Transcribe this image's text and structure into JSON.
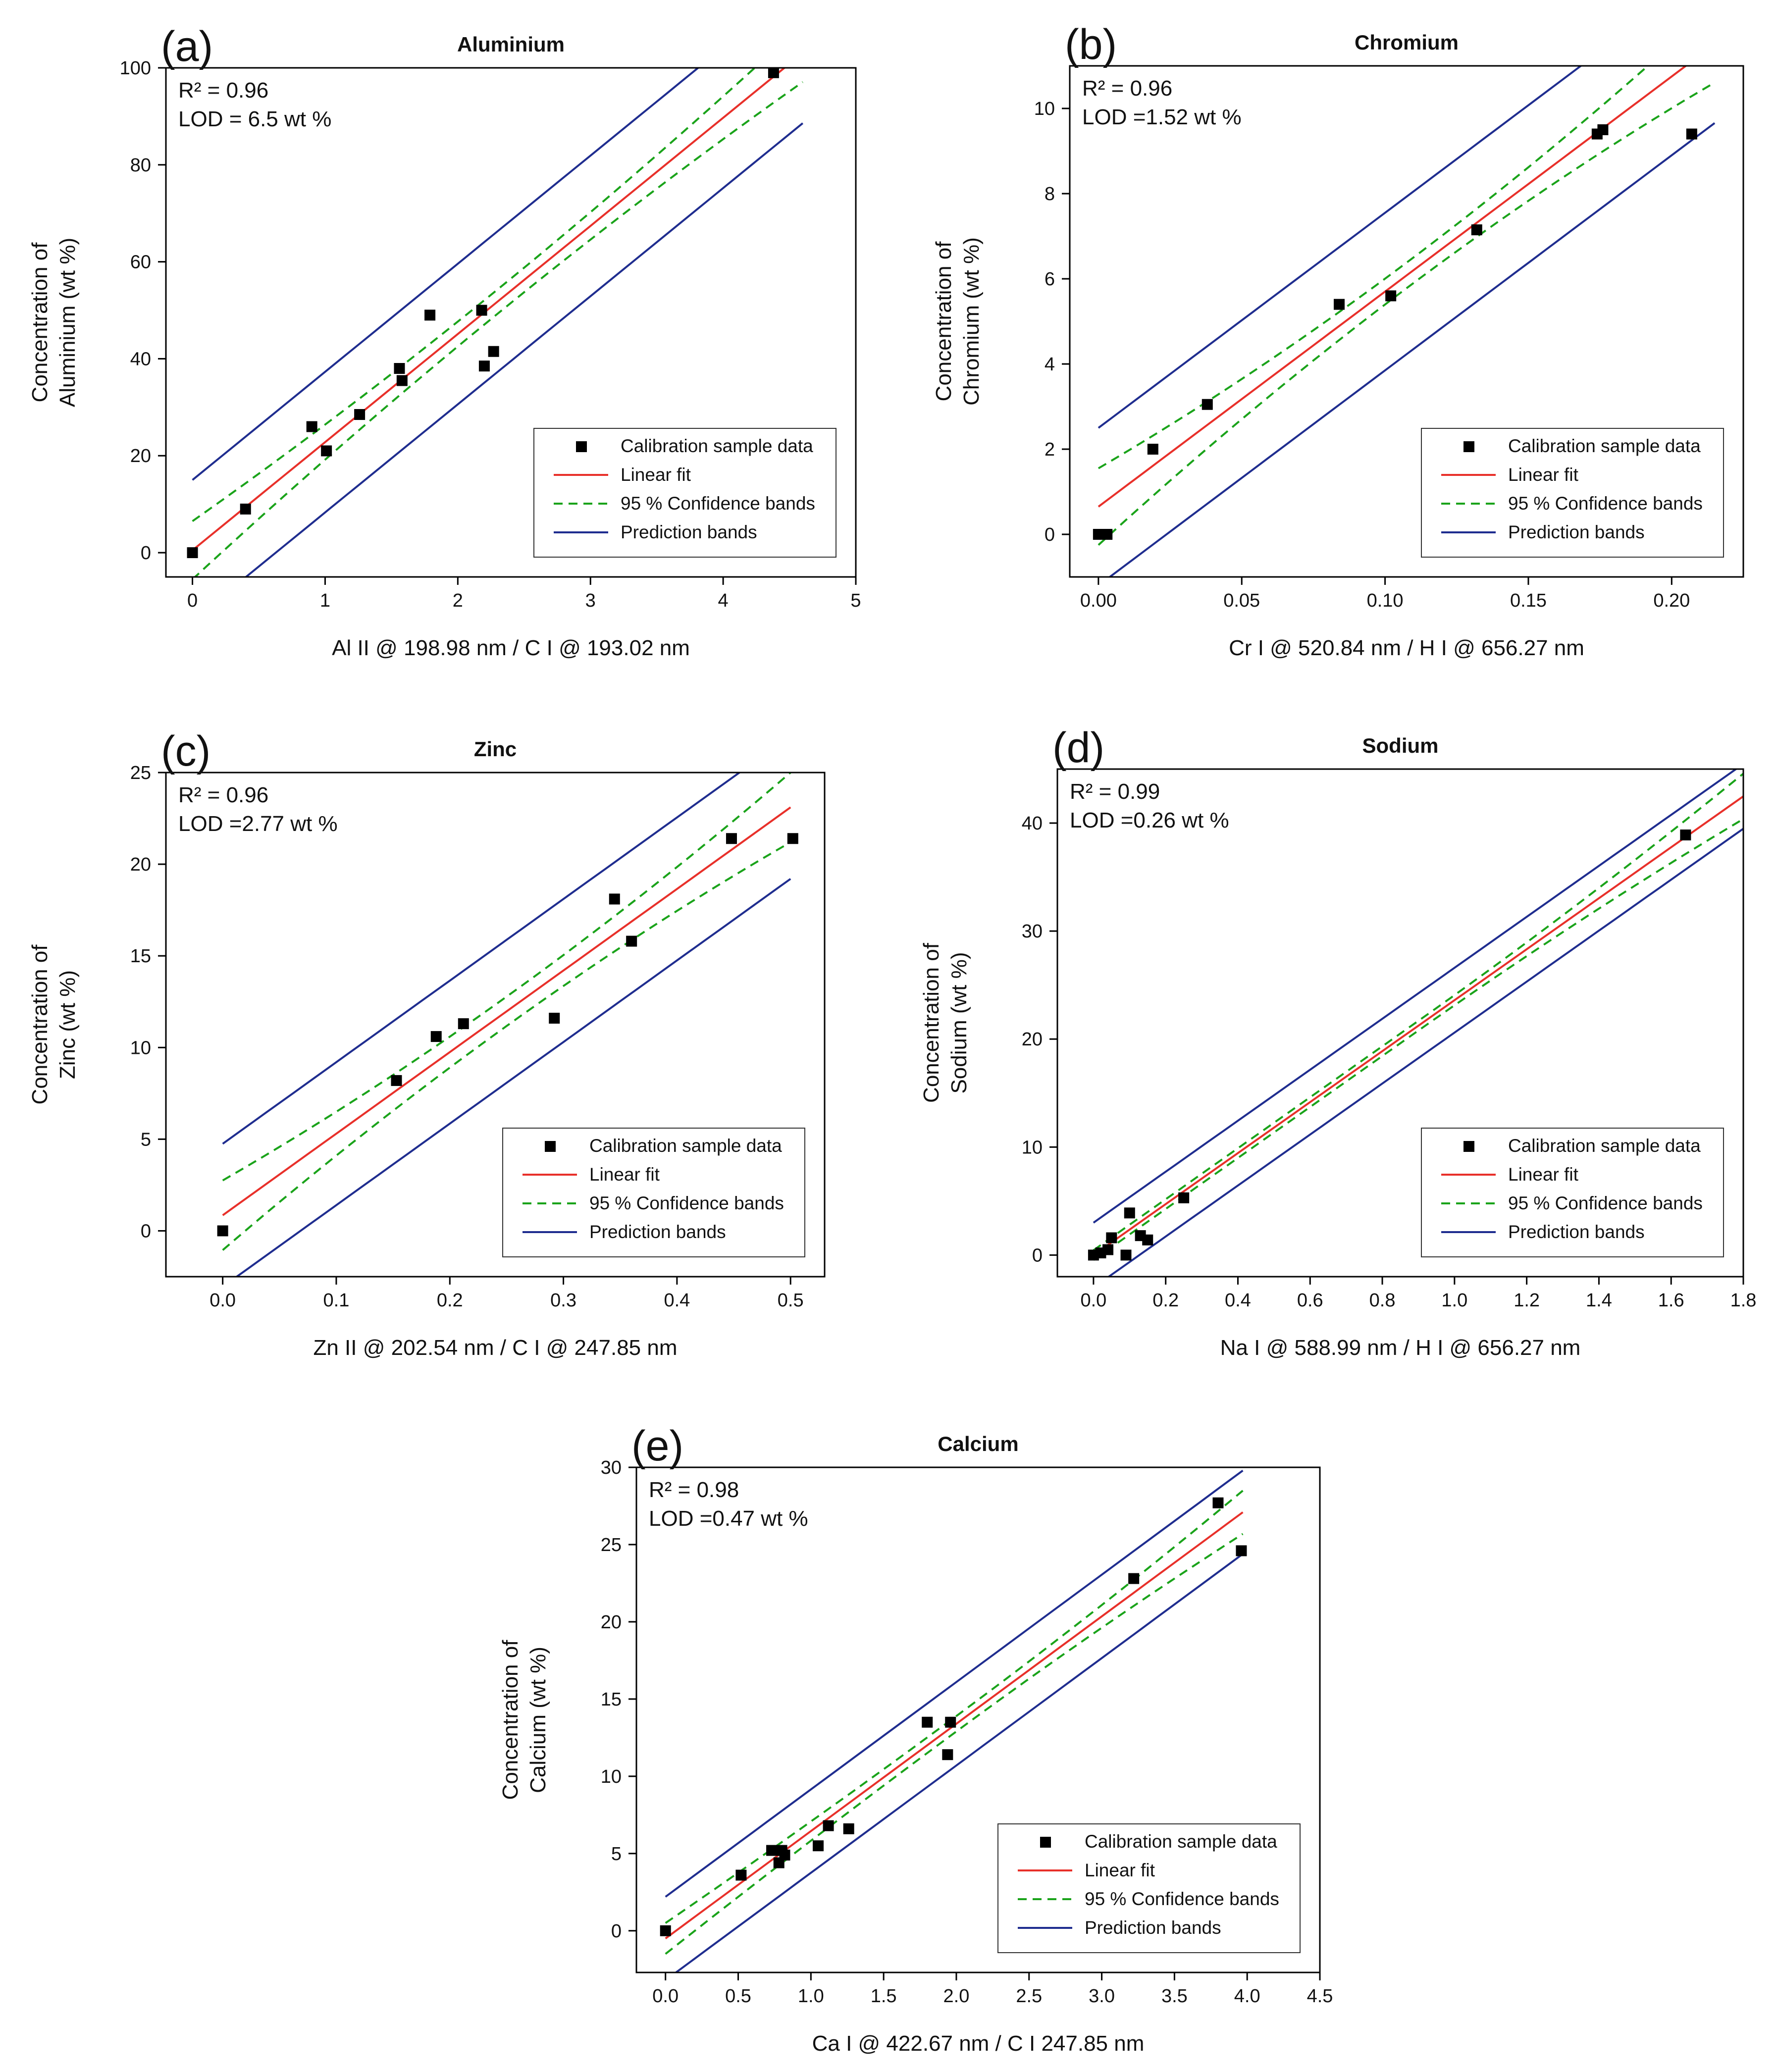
{
  "chart_data": [
    {
      "type": "scatter",
      "panel": "a",
      "panel_label": "(a)",
      "title": "Aluminium",
      "xlabel": "Al II @ 198.98 nm / C I @ 193.02 nm",
      "ylabel_lines": [
        "Concentration of",
        "Aluminium  (wt %)"
      ],
      "stats": {
        "r2": "R² = 0.96",
        "lod": "LOD = 6.5 wt %"
      },
      "xlim": [
        -0.2,
        5.0
      ],
      "ylim": [
        -5,
        100
      ],
      "xticks": [
        0,
        1,
        2,
        3,
        4,
        5
      ],
      "xtick_labels": [
        "0",
        "1",
        "2",
        "3",
        "4",
        "5"
      ],
      "yticks": [
        0,
        20,
        40,
        60,
        80,
        100
      ],
      "ytick_labels": [
        "0",
        "20",
        "40",
        "60",
        "80",
        "100"
      ],
      "points": [
        [
          0,
          0
        ],
        [
          0.4,
          9
        ],
        [
          0.9,
          26
        ],
        [
          1.01,
          21
        ],
        [
          1.26,
          28.5
        ],
        [
          1.56,
          38
        ],
        [
          1.58,
          35.5
        ],
        [
          1.79,
          49
        ],
        [
          2.18,
          50
        ],
        [
          2.2,
          38.5
        ],
        [
          2.27,
          41.5
        ],
        [
          4.38,
          99
        ]
      ],
      "fit": {
        "slope": 22.3,
        "intercept": 0.5,
        "x_range": [
          0,
          4.6
        ]
      },
      "conf_band": {
        "offset_start": 6.0,
        "offset_mid": 2.5,
        "offset_end": 6.0
      },
      "pred_band": {
        "offset": 14.5
      },
      "conf_style": "dashed",
      "legend": [
        "Calibration sample data",
        "Linear fit",
        "95 % Confidence bands",
        "Prediction bands"
      ]
    },
    {
      "type": "scatter",
      "panel": "b",
      "panel_label": "(b)",
      "title": "Chromium",
      "xlabel": "Cr I @ 520.84 nm / H I @ 656.27 nm",
      "ylabel_lines": [
        "Concentration of",
        "Chromium   (wt %)"
      ],
      "stats": {
        "r2": "R² = 0.96",
        "lod": "LOD =1.52 wt %"
      },
      "xlim": [
        -0.01,
        0.225
      ],
      "ylim": [
        -1.0,
        11.0
      ],
      "xticks": [
        0,
        0.05,
        0.1,
        0.15,
        0.2
      ],
      "xtick_labels": [
        "0.00",
        "0.05",
        "0.10",
        "0.15",
        "0.20"
      ],
      "yticks": [
        0,
        2,
        4,
        6,
        8,
        10
      ],
      "ytick_labels": [
        "0",
        "2",
        "4",
        "6",
        "8",
        "10"
      ],
      "points": [
        [
          0,
          0
        ],
        [
          0.002,
          0
        ],
        [
          0.003,
          0
        ],
        [
          0.019,
          2.0
        ],
        [
          0.038,
          3.05
        ],
        [
          0.084,
          5.4
        ],
        [
          0.102,
          5.6
        ],
        [
          0.132,
          7.15
        ],
        [
          0.174,
          9.4
        ],
        [
          0.176,
          9.5
        ],
        [
          0.207,
          9.4
        ]
      ],
      "fit": {
        "slope": 50.5,
        "intercept": 0.65,
        "x_range": [
          0,
          0.215
        ]
      },
      "conf_band": {
        "offset_start": 0.9,
        "offset_mid": 0.3,
        "offset_end": 0.9
      },
      "pred_band": {
        "offset": 1.85
      },
      "conf_style": "dashed",
      "legend": [
        "Calibration sample data",
        "Linear fit",
        "95 % Confidence bands",
        "Prediction bands"
      ]
    },
    {
      "type": "scatter",
      "panel": "c",
      "panel_label": "(c)",
      "title": "Zinc",
      "xlabel": "Zn II @ 202.54 nm / C I @ 247.85 nm",
      "ylabel_lines": [
        "Concentration of",
        "Zinc (wt %)"
      ],
      "stats": {
        "r2": "R² = 0.96",
        "lod": "LOD =2.77 wt %"
      },
      "xlim": [
        -0.05,
        0.53
      ],
      "ylim": [
        -2.5,
        25
      ],
      "xticks": [
        0,
        0.1,
        0.2,
        0.3,
        0.4,
        0.5
      ],
      "xtick_labels": [
        "0.0",
        "0.1",
        "0.2",
        "0.3",
        "0.4",
        "0.5"
      ],
      "yticks": [
        0,
        5,
        10,
        15,
        20,
        25
      ],
      "ytick_labels": [
        "0",
        "5",
        "10",
        "15",
        "20",
        "25"
      ],
      "points": [
        [
          0,
          0
        ],
        [
          0.153,
          8.2
        ],
        [
          0.188,
          10.6
        ],
        [
          0.212,
          11.3
        ],
        [
          0.292,
          11.6
        ],
        [
          0.345,
          18.1
        ],
        [
          0.36,
          15.8
        ],
        [
          0.448,
          21.4
        ],
        [
          0.502,
          21.4
        ]
      ],
      "fit": {
        "slope": 44.5,
        "intercept": 0.85,
        "x_range": [
          0,
          0.5
        ]
      },
      "conf_band": {
        "offset_start": 1.9,
        "offset_mid": 0.8,
        "offset_end": 1.9
      },
      "pred_band": {
        "offset": 3.9
      },
      "conf_style": "dashed",
      "legend": [
        "Calibration sample data",
        "Linear fit",
        "95 % Confidence bands",
        "Prediction bands"
      ]
    },
    {
      "type": "scatter",
      "panel": "d",
      "panel_label": "(d)",
      "title": "Sodium",
      "xlabel": "Na I @ 588.99 nm / H I @ 656.27 nm",
      "ylabel_lines": [
        "Concentration of",
        "Sodium (wt %)"
      ],
      "stats": {
        "r2": "R² = 0.99",
        "lod": "LOD =0.26 wt %"
      },
      "xlim": [
        -0.1,
        1.8
      ],
      "ylim": [
        -2.0,
        45
      ],
      "xticks": [
        0,
        0.2,
        0.4,
        0.6,
        0.8,
        1.0,
        1.2,
        1.4,
        1.6,
        1.8
      ],
      "xtick_labels": [
        "0.0",
        "0.2",
        "0.4",
        "0.6",
        "0.8",
        "1.0",
        "1.2",
        "1.4",
        "1.6",
        "1.8"
      ],
      "yticks": [
        0,
        10,
        20,
        30,
        40
      ],
      "ytick_labels": [
        "0",
        "10",
        "20",
        "30",
        "40"
      ],
      "points": [
        [
          0,
          0
        ],
        [
          0.02,
          0.2
        ],
        [
          0.04,
          0.5
        ],
        [
          0.05,
          1.6
        ],
        [
          0.09,
          0
        ],
        [
          0.1,
          3.9
        ],
        [
          0.13,
          1.8
        ],
        [
          0.15,
          1.4
        ],
        [
          0.25,
          5.3
        ],
        [
          1.64,
          38.9
        ]
      ],
      "fit": {
        "slope": 23.6,
        "intercept": 0.0,
        "x_range": [
          0,
          1.8
        ]
      },
      "conf_band": {
        "offset_start": 0.45,
        "offset_mid": 0.45,
        "offset_end": 2.1
      },
      "pred_band": {
        "offset": 3.0
      },
      "conf_style": "dashed",
      "legend": [
        "Calibration sample data",
        "Linear fit",
        "95 % Confidence bands",
        "Prediction bands"
      ]
    },
    {
      "type": "scatter",
      "panel": "e",
      "panel_label": "(e)",
      "title": "Calcium",
      "xlabel": "Ca I @ 422.67 nm / C I 247.85 nm",
      "ylabel_lines": [
        "Concentration of",
        "Calcium (wt %)"
      ],
      "stats": {
        "r2": "R² = 0.98",
        "lod": "LOD =0.47 wt %"
      },
      "xlim": [
        -0.2,
        4.5
      ],
      "ylim": [
        -2.7,
        30
      ],
      "xticks": [
        0,
        0.5,
        1.0,
        1.5,
        2.0,
        2.5,
        3.0,
        3.5,
        4.0,
        4.5
      ],
      "xtick_labels": [
        "0.0",
        "0.5",
        "1.0",
        "1.5",
        "2.0",
        "2.5",
        "3.0",
        "3.5",
        "4.0",
        "4.5"
      ],
      "yticks": [
        0,
        5,
        10,
        15,
        20,
        25,
        30
      ],
      "ytick_labels": [
        "0",
        "5",
        "10",
        "15",
        "20",
        "25",
        "30"
      ],
      "points": [
        [
          0,
          0
        ],
        [
          0.52,
          3.6
        ],
        [
          0.73,
          5.2
        ],
        [
          0.78,
          4.4
        ],
        [
          0.8,
          5.2
        ],
        [
          0.82,
          4.9
        ],
        [
          1.05,
          5.5
        ],
        [
          1.12,
          6.8
        ],
        [
          1.26,
          6.6
        ],
        [
          1.8,
          13.5
        ],
        [
          1.94,
          11.4
        ],
        [
          1.96,
          13.5
        ],
        [
          3.22,
          22.8
        ],
        [
          3.8,
          27.7
        ],
        [
          3.96,
          24.6
        ]
      ],
      "fit": {
        "slope": 6.95,
        "intercept": -0.5,
        "x_range": [
          0,
          3.97
        ]
      },
      "conf_band": {
        "offset_start": 1.0,
        "offset_mid": 0.5,
        "offset_end": 1.4
      },
      "pred_band": {
        "offset": 2.7
      },
      "conf_style": "dashed",
      "legend": [
        "Calibration sample data",
        "Linear fit",
        "95 % Confidence bands",
        "Prediction bands"
      ]
    }
  ],
  "colors": {
    "fit": "#e8302a",
    "confidence": "#1aa31a",
    "prediction": "#1f2d8f",
    "points": "#000000",
    "axis": "#000000"
  }
}
